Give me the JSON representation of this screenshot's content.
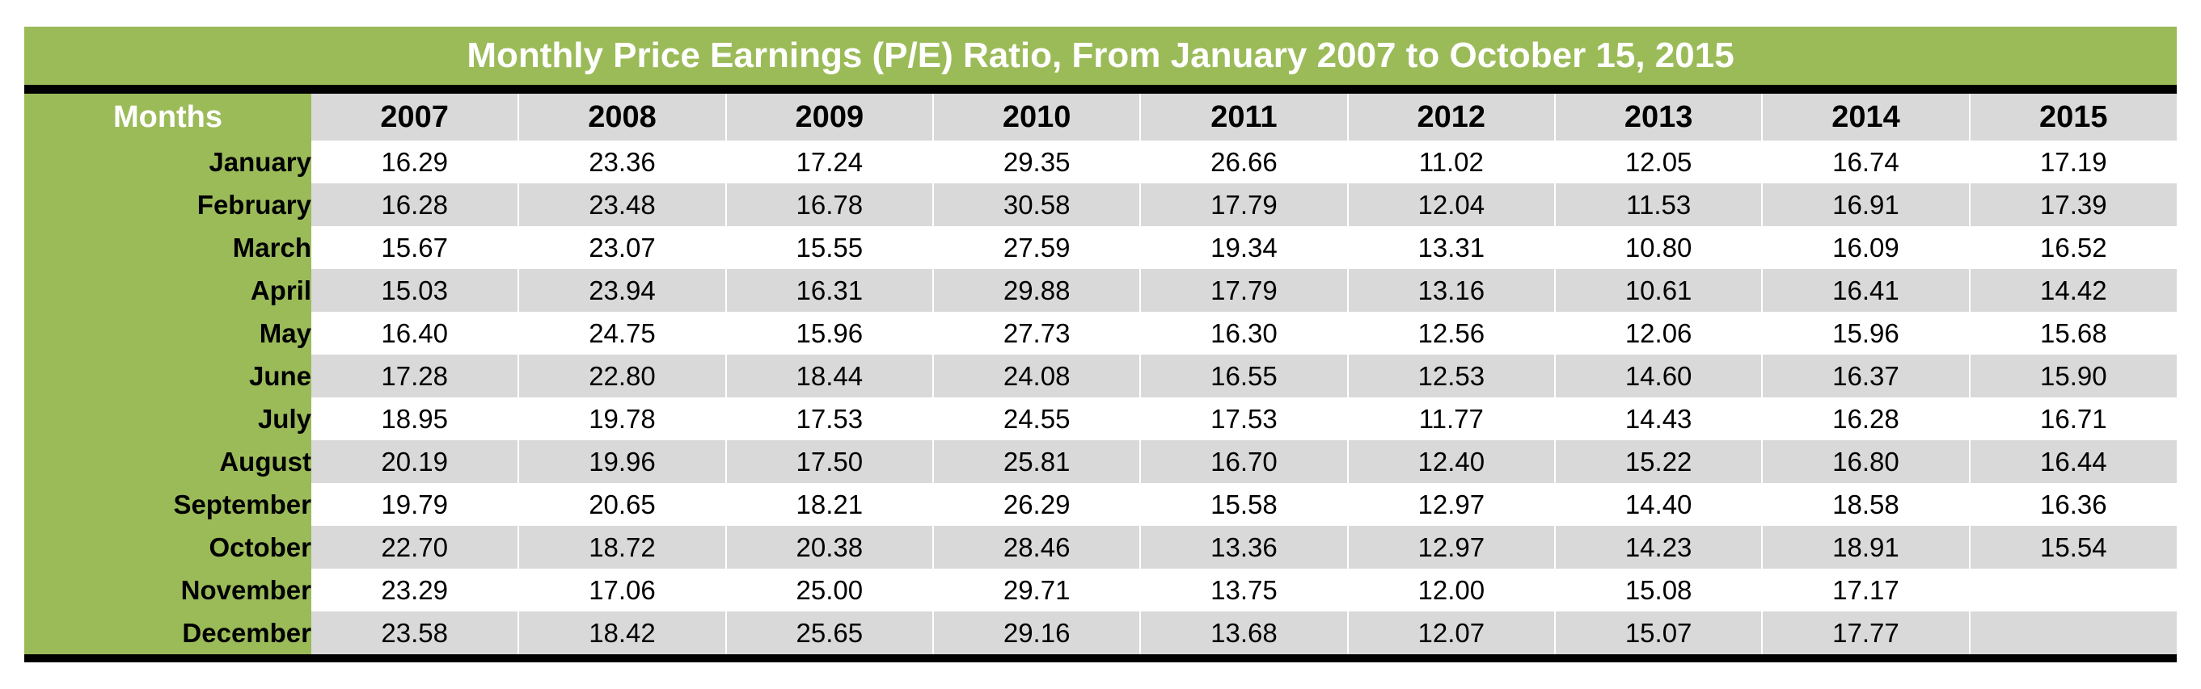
{
  "colors": {
    "accent_green": "#9bbb59",
    "stripe_gray": "#d9d9d9",
    "stripe_white": "#ffffff",
    "border_black": "#000000",
    "title_text": "#ffffff",
    "body_text": "#000000"
  },
  "chart_data": {
    "type": "table",
    "title": "Monthly Price Earnings (P/E) Ratio, From January 2007 to October 15, 2015",
    "row_header_label": "Months",
    "months": [
      "January",
      "February",
      "March",
      "April",
      "May",
      "June",
      "July",
      "August",
      "September",
      "October",
      "November",
      "December"
    ],
    "series": [
      {
        "name": "2007",
        "values": [
          "16.29",
          "16.28",
          "15.67",
          "15.03",
          "16.40",
          "17.28",
          "18.95",
          "20.19",
          "19.79",
          "22.70",
          "23.29",
          "23.58"
        ]
      },
      {
        "name": "2008",
        "values": [
          "23.36",
          "23.48",
          "23.07",
          "23.94",
          "24.75",
          "22.80",
          "19.78",
          "19.96",
          "20.65",
          "18.72",
          "17.06",
          "18.42"
        ]
      },
      {
        "name": "2009",
        "values": [
          "17.24",
          "16.78",
          "15.55",
          "16.31",
          "15.96",
          "18.44",
          "17.53",
          "17.50",
          "18.21",
          "20.38",
          "25.00",
          "25.65"
        ]
      },
      {
        "name": "2010",
        "values": [
          "29.35",
          "30.58",
          "27.59",
          "29.88",
          "27.73",
          "24.08",
          "24.55",
          "25.81",
          "26.29",
          "28.46",
          "29.71",
          "29.16"
        ]
      },
      {
        "name": "2011",
        "values": [
          "26.66",
          "17.79",
          "19.34",
          "17.79",
          "16.30",
          "16.55",
          "17.53",
          "16.70",
          "15.58",
          "13.36",
          "13.75",
          "13.68"
        ]
      },
      {
        "name": "2012",
        "values": [
          "11.02",
          "12.04",
          "13.31",
          "13.16",
          "12.56",
          "12.53",
          "11.77",
          "12.40",
          "12.97",
          "12.97",
          "12.00",
          "12.07"
        ]
      },
      {
        "name": "2013",
        "values": [
          "12.05",
          "11.53",
          "10.80",
          "10.61",
          "12.06",
          "14.60",
          "14.43",
          "15.22",
          "14.40",
          "14.23",
          "15.08",
          "15.07"
        ]
      },
      {
        "name": "2014",
        "values": [
          "16.74",
          "16.91",
          "16.09",
          "16.41",
          "15.96",
          "16.37",
          "16.28",
          "16.80",
          "18.58",
          "18.91",
          "17.17",
          "17.77"
        ]
      },
      {
        "name": "2015",
        "values": [
          "17.19",
          "17.39",
          "16.52",
          "14.42",
          "15.68",
          "15.90",
          "16.71",
          "16.44",
          "16.36",
          "15.54",
          "",
          ""
        ]
      }
    ],
    "layout": {
      "striped": true,
      "stripe_colors": [
        "#ffffff",
        "#d9d9d9"
      ],
      "first_stripe": "white",
      "grid": false
    }
  }
}
